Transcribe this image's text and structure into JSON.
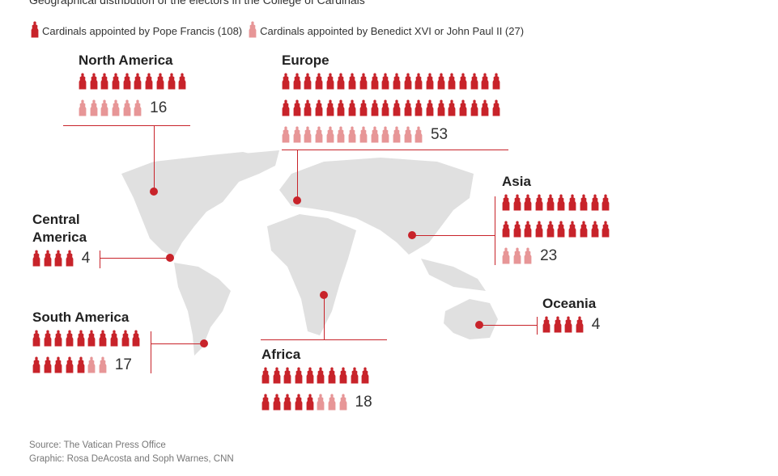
{
  "subtitle": "Geographical distribution of the electors in the College of Cardinals",
  "legend": [
    {
      "label": "Cardinals appointed by Pope Francis (108)",
      "color": "#c8232a"
    },
    {
      "label": "Cardinals appointed by Benedict XVI or John Paul II (27)",
      "color": "#e79697"
    }
  ],
  "chart_data": {
    "type": "pictogram map",
    "series": [
      {
        "name": "Cardinals appointed by Pope Francis",
        "color": "#c8232a"
      },
      {
        "name": "Cardinals appointed by Benedict XVI or John Paul II",
        "color": "#e79697"
      }
    ],
    "regions": [
      {
        "id": "north-america",
        "name": "North America",
        "francis": 10,
        "other": 6,
        "total": "16"
      },
      {
        "id": "europe",
        "name": "Europe",
        "francis": 40,
        "other": 13,
        "total": "53"
      },
      {
        "id": "asia",
        "name": "Asia",
        "francis": 20,
        "other": 3,
        "total": "23"
      },
      {
        "id": "central-america",
        "name": "Central America",
        "francis": 4,
        "other": 0,
        "total": "4"
      },
      {
        "id": "south-america",
        "name": "South America",
        "francis": 15,
        "other": 2,
        "total": "17"
      },
      {
        "id": "africa",
        "name": "Africa",
        "francis": 15,
        "other": 3,
        "total": "18"
      },
      {
        "id": "oceania",
        "name": "Oceania",
        "francis": 4,
        "other": 0,
        "total": "4"
      }
    ],
    "map_color": "#e0e0e0"
  },
  "source": "Source: The Vatican Press Office",
  "credit": "Graphic: Rosa DeAcosta and Soph Warnes, CNN"
}
